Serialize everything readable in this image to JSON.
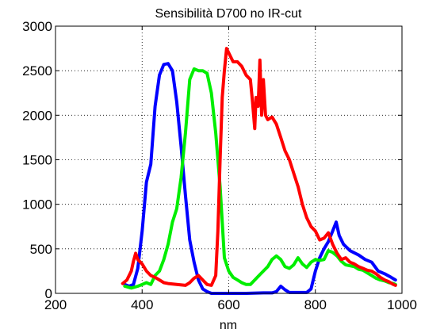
{
  "chart_data": {
    "type": "line",
    "title": "Sensibilità D700 no IR-cut",
    "xlabel": "nm",
    "ylabel": "",
    "xlim": [
      200,
      1000
    ],
    "ylim": [
      0,
      3000
    ],
    "xticks": [
      200,
      400,
      600,
      800,
      1000
    ],
    "yticks": [
      0,
      500,
      1000,
      1500,
      2000,
      2500,
      3000
    ],
    "grid": "dotted",
    "legend": "none",
    "series": [
      {
        "color": "#0000ff",
        "points": [
          [
            360,
            100
          ],
          [
            370,
            80
          ],
          [
            380,
            100
          ],
          [
            390,
            280
          ],
          [
            400,
            700
          ],
          [
            410,
            1250
          ],
          [
            420,
            1450
          ],
          [
            430,
            2100
          ],
          [
            440,
            2450
          ],
          [
            450,
            2570
          ],
          [
            460,
            2580
          ],
          [
            470,
            2500
          ],
          [
            480,
            2150
          ],
          [
            490,
            1650
          ],
          [
            500,
            1100
          ],
          [
            510,
            600
          ],
          [
            520,
            350
          ],
          [
            530,
            150
          ],
          [
            540,
            50
          ],
          [
            550,
            20
          ],
          [
            560,
            0
          ],
          [
            600,
            0
          ],
          [
            640,
            0
          ],
          [
            680,
            5
          ],
          [
            700,
            5
          ],
          [
            710,
            20
          ],
          [
            720,
            80
          ],
          [
            730,
            40
          ],
          [
            740,
            10
          ],
          [
            760,
            10
          ],
          [
            780,
            10
          ],
          [
            790,
            50
          ],
          [
            800,
            250
          ],
          [
            810,
            400
          ],
          [
            820,
            500
          ],
          [
            830,
            580
          ],
          [
            840,
            700
          ],
          [
            848,
            800
          ],
          [
            855,
            650
          ],
          [
            865,
            550
          ],
          [
            880,
            480
          ],
          [
            900,
            430
          ],
          [
            915,
            380
          ],
          [
            930,
            350
          ],
          [
            945,
            250
          ],
          [
            960,
            220
          ],
          [
            975,
            180
          ],
          [
            985,
            150
          ]
        ]
      },
      {
        "color": "#00ee00",
        "points": [
          [
            360,
            80
          ],
          [
            375,
            60
          ],
          [
            390,
            80
          ],
          [
            400,
            100
          ],
          [
            410,
            120
          ],
          [
            420,
            100
          ],
          [
            430,
            200
          ],
          [
            440,
            250
          ],
          [
            450,
            380
          ],
          [
            460,
            550
          ],
          [
            470,
            800
          ],
          [
            480,
            950
          ],
          [
            490,
            1300
          ],
          [
            500,
            1800
          ],
          [
            510,
            2400
          ],
          [
            520,
            2520
          ],
          [
            530,
            2500
          ],
          [
            540,
            2500
          ],
          [
            550,
            2470
          ],
          [
            560,
            2250
          ],
          [
            570,
            1800
          ],
          [
            580,
            1200
          ],
          [
            590,
            400
          ],
          [
            600,
            250
          ],
          [
            610,
            180
          ],
          [
            620,
            150
          ],
          [
            630,
            120
          ],
          [
            640,
            100
          ],
          [
            650,
            100
          ],
          [
            660,
            150
          ],
          [
            670,
            200
          ],
          [
            680,
            250
          ],
          [
            690,
            300
          ],
          [
            700,
            380
          ],
          [
            710,
            420
          ],
          [
            720,
            380
          ],
          [
            730,
            300
          ],
          [
            740,
            280
          ],
          [
            750,
            320
          ],
          [
            760,
            400
          ],
          [
            770,
            330
          ],
          [
            780,
            290
          ],
          [
            790,
            350
          ],
          [
            800,
            380
          ],
          [
            810,
            370
          ],
          [
            820,
            380
          ],
          [
            830,
            480
          ],
          [
            840,
            460
          ],
          [
            850,
            420
          ],
          [
            860,
            360
          ],
          [
            870,
            320
          ],
          [
            880,
            310
          ],
          [
            890,
            300
          ],
          [
            900,
            270
          ],
          [
            910,
            260
          ],
          [
            920,
            230
          ],
          [
            930,
            200
          ],
          [
            940,
            170
          ],
          [
            950,
            150
          ],
          [
            960,
            140
          ],
          [
            970,
            120
          ],
          [
            980,
            110
          ],
          [
            985,
            100
          ]
        ]
      },
      {
        "color": "#ff0000",
        "points": [
          [
            355,
            110
          ],
          [
            365,
            150
          ],
          [
            375,
            250
          ],
          [
            380,
            360
          ],
          [
            385,
            450
          ],
          [
            390,
            380
          ],
          [
            400,
            330
          ],
          [
            410,
            250
          ],
          [
            420,
            200
          ],
          [
            430,
            180
          ],
          [
            440,
            150
          ],
          [
            450,
            120
          ],
          [
            460,
            110
          ],
          [
            480,
            100
          ],
          [
            500,
            90
          ],
          [
            510,
            120
          ],
          [
            520,
            170
          ],
          [
            530,
            200
          ],
          [
            540,
            150
          ],
          [
            550,
            100
          ],
          [
            560,
            90
          ],
          [
            570,
            200
          ],
          [
            575,
            700
          ],
          [
            580,
            1500
          ],
          [
            585,
            2200
          ],
          [
            590,
            2500
          ],
          [
            595,
            2750
          ],
          [
            600,
            2700
          ],
          [
            610,
            2600
          ],
          [
            620,
            2600
          ],
          [
            630,
            2550
          ],
          [
            640,
            2450
          ],
          [
            650,
            2400
          ],
          [
            655,
            2150
          ],
          [
            660,
            1850
          ],
          [
            663,
            2200
          ],
          [
            668,
            2100
          ],
          [
            672,
            2620
          ],
          [
            676,
            2000
          ],
          [
            680,
            2400
          ],
          [
            685,
            2000
          ],
          [
            690,
            1950
          ],
          [
            700,
            1980
          ],
          [
            710,
            1900
          ],
          [
            720,
            1750
          ],
          [
            730,
            1600
          ],
          [
            740,
            1500
          ],
          [
            750,
            1350
          ],
          [
            760,
            1200
          ],
          [
            770,
            1000
          ],
          [
            780,
            850
          ],
          [
            790,
            750
          ],
          [
            800,
            700
          ],
          [
            810,
            600
          ],
          [
            820,
            620
          ],
          [
            830,
            680
          ],
          [
            840,
            550
          ],
          [
            850,
            450
          ],
          [
            860,
            380
          ],
          [
            870,
            400
          ],
          [
            880,
            350
          ],
          [
            890,
            330
          ],
          [
            900,
            300
          ],
          [
            910,
            280
          ],
          [
            920,
            260
          ],
          [
            930,
            250
          ],
          [
            940,
            220
          ],
          [
            950,
            180
          ],
          [
            960,
            150
          ],
          [
            970,
            130
          ],
          [
            980,
            100
          ],
          [
            985,
            90
          ]
        ]
      }
    ]
  }
}
